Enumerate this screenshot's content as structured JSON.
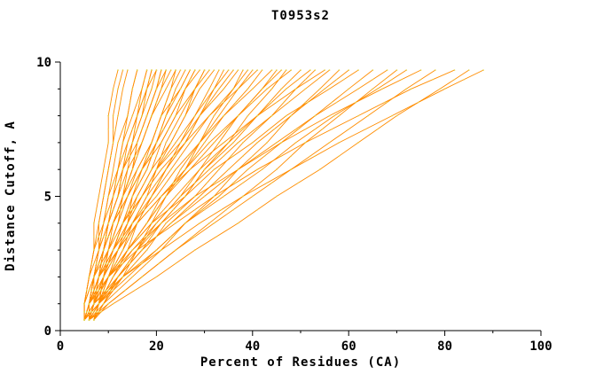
{
  "title": "T0953s2",
  "chart_data": {
    "type": "line",
    "title": "T0953s2",
    "xlabel": "Percent of Residues (CA)",
    "ylabel": "Distance Cutoff, A",
    "xlim": [
      0,
      100
    ],
    "ylim": [
      0,
      10
    ],
    "x_ticks": [
      0,
      20,
      40,
      60,
      80,
      100
    ],
    "x_minor_ticks": [
      10,
      30,
      50,
      70,
      90
    ],
    "y_ticks": [
      0,
      5,
      10
    ],
    "y_minor_ticks": [
      1,
      2,
      3,
      4,
      6,
      7,
      8,
      9
    ],
    "grid": false,
    "legend": "none",
    "line_color": "#ff8c00",
    "marker_color": "#e6d14e",
    "axis_color": "#000000",
    "y_values": [
      0.4,
      1,
      2,
      3,
      4,
      5,
      6,
      7,
      8,
      9,
      9.7
    ],
    "curves": [
      [
        5,
        7,
        13,
        21,
        29,
        38,
        48,
        58,
        69,
        80,
        88
      ],
      [
        6,
        11,
        20,
        28,
        37,
        45,
        54,
        62,
        70,
        79,
        85
      ],
      [
        5,
        6,
        10,
        16,
        24,
        32,
        41,
        51,
        62,
        73,
        82
      ],
      [
        7,
        10,
        17,
        24,
        32,
        40,
        48,
        56,
        64,
        72,
        78
      ],
      [
        6,
        7,
        10,
        15,
        21,
        28,
        37,
        46,
        56,
        67,
        75
      ],
      [
        5,
        8,
        13,
        20,
        26,
        34,
        42,
        49,
        57,
        66,
        72
      ],
      [
        6,
        10,
        17,
        24,
        31,
        38,
        45,
        51,
        58,
        65,
        70
      ],
      [
        7,
        8,
        12,
        17,
        23,
        30,
        37,
        45,
        53,
        62,
        68
      ],
      [
        5,
        8,
        14,
        20,
        26,
        33,
        39,
        46,
        53,
        60,
        65
      ],
      [
        6,
        7,
        10,
        14,
        19,
        26,
        32,
        40,
        47,
        56,
        62
      ],
      [
        5,
        7,
        12,
        17,
        23,
        29,
        35,
        41,
        48,
        55,
        60
      ],
      [
        6,
        9,
        15,
        21,
        26,
        32,
        37,
        43,
        48,
        54,
        58
      ],
      [
        7,
        8,
        11,
        15,
        20,
        25,
        31,
        37,
        44,
        51,
        56
      ],
      [
        5,
        6,
        8,
        12,
        16,
        21,
        27,
        34,
        41,
        49,
        55
      ],
      [
        6,
        8,
        13,
        18,
        22,
        28,
        33,
        38,
        44,
        49,
        53
      ],
      [
        5,
        6,
        10,
        14,
        19,
        24,
        29,
        35,
        41,
        47,
        52
      ],
      [
        7,
        9,
        12,
        16,
        21,
        26,
        30,
        36,
        41,
        46,
        50
      ],
      [
        6,
        7,
        9,
        12,
        16,
        21,
        26,
        31,
        37,
        43,
        48
      ],
      [
        5,
        8,
        12,
        17,
        21,
        26,
        30,
        35,
        39,
        44,
        47
      ],
      [
        6,
        7,
        10,
        14,
        18,
        22,
        27,
        32,
        37,
        42,
        46
      ],
      [
        7,
        9,
        13,
        16,
        20,
        25,
        29,
        33,
        37,
        42,
        45
      ],
      [
        5,
        6,
        8,
        12,
        15,
        20,
        24,
        29,
        34,
        40,
        44
      ],
      [
        6,
        7,
        10,
        14,
        18,
        21,
        26,
        30,
        34,
        39,
        42
      ],
      [
        5,
        6,
        7,
        10,
        13,
        17,
        21,
        26,
        31,
        37,
        41
      ],
      [
        6,
        8,
        11,
        14,
        18,
        22,
        25,
        29,
        33,
        37,
        40
      ],
      [
        5,
        6,
        8,
        11,
        15,
        19,
        23,
        27,
        31,
        36,
        39
      ],
      [
        7,
        9,
        12,
        16,
        19,
        22,
        26,
        29,
        32,
        36,
        38
      ],
      [
        6,
        7,
        8,
        11,
        13,
        17,
        20,
        25,
        29,
        34,
        37
      ],
      [
        5,
        6,
        9,
        12,
        15,
        18,
        22,
        26,
        29,
        33,
        36
      ],
      [
        6,
        7,
        9,
        11,
        14,
        17,
        20,
        24,
        28,
        32,
        35
      ],
      [
        7,
        8,
        11,
        14,
        16,
        19,
        22,
        26,
        29,
        32,
        34
      ],
      [
        5,
        7,
        10,
        13,
        16,
        19,
        22,
        25,
        28,
        31,
        33
      ],
      [
        6,
        7,
        9,
        11,
        13,
        16,
        19,
        23,
        26,
        29,
        32
      ],
      [
        5,
        5,
        7,
        9,
        11,
        14,
        17,
        21,
        24,
        28,
        31
      ],
      [
        7,
        8,
        10,
        12,
        14,
        17,
        20,
        22,
        25,
        28,
        30
      ],
      [
        6,
        8,
        10,
        13,
        15,
        18,
        20,
        23,
        26,
        28,
        30
      ],
      [
        5,
        6,
        7,
        9,
        11,
        14,
        17,
        20,
        23,
        26,
        29
      ],
      [
        6,
        7,
        9,
        11,
        14,
        16,
        19,
        21,
        24,
        26,
        28
      ],
      [
        7,
        8,
        9,
        11,
        13,
        15,
        18,
        20,
        23,
        26,
        28
      ],
      [
        5,
        6,
        8,
        10,
        12,
        14,
        17,
        20,
        22,
        25,
        27
      ],
      [
        6,
        6,
        8,
        9,
        11,
        13,
        16,
        19,
        21,
        25,
        27
      ],
      [
        5,
        6,
        9,
        11,
        13,
        15,
        18,
        20,
        22,
        24,
        26
      ],
      [
        6,
        7,
        8,
        10,
        12,
        14,
        16,
        19,
        21,
        23,
        25
      ],
      [
        5,
        5,
        7,
        8,
        10,
        12,
        14,
        17,
        19,
        22,
        24
      ],
      [
        7,
        8,
        10,
        12,
        14,
        15,
        17,
        19,
        21,
        23,
        24
      ],
      [
        6,
        7,
        8,
        9,
        11,
        13,
        15,
        17,
        19,
        21,
        23
      ],
      [
        5,
        6,
        7,
        9,
        11,
        13,
        15,
        17,
        19,
        21,
        22
      ],
      [
        6,
        6,
        7,
        8,
        10,
        12,
        13,
        16,
        18,
        20,
        22
      ],
      [
        7,
        8,
        9,
        10,
        12,
        13,
        15,
        16,
        18,
        20,
        21
      ],
      [
        5,
        6,
        8,
        9,
        11,
        13,
        15,
        16,
        18,
        20,
        21
      ],
      [
        6,
        6,
        7,
        9,
        10,
        12,
        13,
        15,
        17,
        19,
        20
      ],
      [
        5,
        5,
        6,
        8,
        9,
        11,
        12,
        14,
        16,
        18,
        20
      ],
      [
        7,
        8,
        9,
        10,
        11,
        13,
        14,
        15,
        17,
        18,
        19
      ],
      [
        6,
        7,
        8,
        9,
        10,
        12,
        13,
        15,
        16,
        18,
        19
      ],
      [
        5,
        6,
        7,
        9,
        10,
        11,
        13,
        14,
        16,
        17,
        18
      ],
      [
        6,
        6,
        7,
        8,
        9,
        10,
        12,
        13,
        15,
        17,
        18
      ],
      [
        5,
        5,
        6,
        7,
        9,
        10,
        11,
        12,
        14,
        15,
        16
      ],
      [
        6,
        7,
        7,
        9,
        10,
        11,
        12,
        13,
        14,
        15,
        16
      ],
      [
        5,
        5,
        6,
        7,
        8,
        9,
        10,
        11,
        12,
        13,
        14
      ],
      [
        6,
        6,
        7,
        8,
        8,
        9,
        10,
        11,
        11,
        12,
        13
      ],
      [
        5,
        5,
        6,
        7,
        7,
        8,
        9,
        10,
        10,
        11,
        12
      ]
    ]
  }
}
